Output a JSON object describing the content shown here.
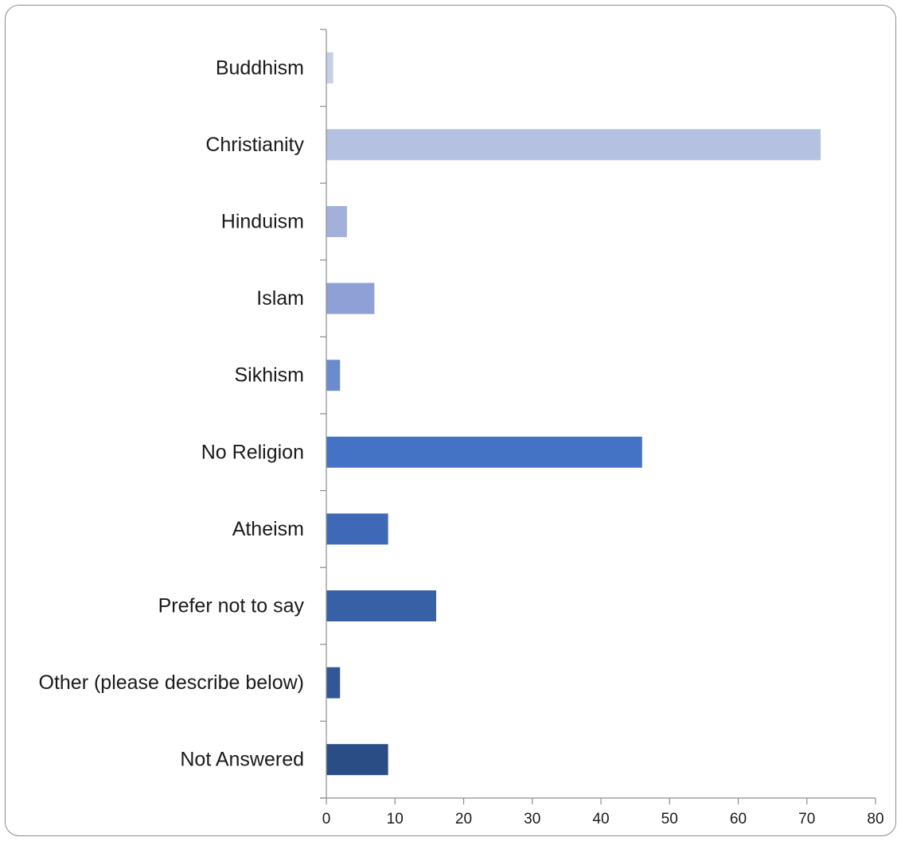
{
  "chart_data": {
    "type": "bar",
    "orientation": "horizontal",
    "categories": [
      "Buddhism",
      "Christianity",
      "Hinduism",
      "Islam",
      "Sikhism",
      "No Religion",
      "Atheism",
      "Prefer not to say",
      "Other (please describe below)",
      "Not Answered"
    ],
    "values": [
      1,
      72,
      3,
      7,
      2,
      46,
      9,
      16,
      2,
      9
    ],
    "colors": [
      "#c8d0e6",
      "#b5c1e0",
      "#a3b1da",
      "#8ea0d5",
      "#6a8ccf",
      "#4472c4",
      "#3f69b6",
      "#3760a6",
      "#325796",
      "#2a4d86"
    ],
    "xlim": [
      0,
      80
    ],
    "xticks": [
      0,
      10,
      20,
      30,
      40,
      50,
      60,
      70,
      80
    ],
    "title": "",
    "xlabel": "",
    "ylabel": "",
    "grid": false,
    "legend": "none"
  }
}
